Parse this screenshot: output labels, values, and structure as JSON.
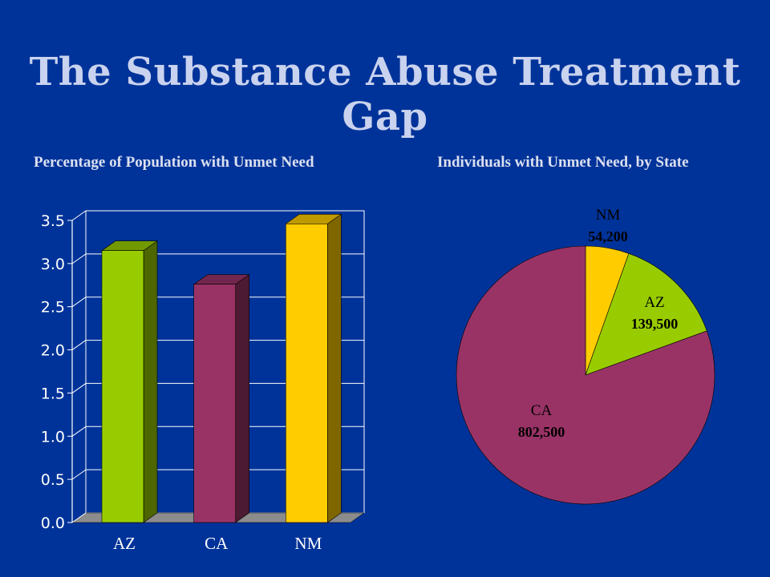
{
  "slide": {
    "title": "The Substance Abuse Treatment Gap"
  },
  "colors": {
    "background": "#003399",
    "title": "#c9d2ee",
    "AZ": "#99cc00",
    "CA": "#993366",
    "NM": "#ffcc00"
  },
  "chart_data": [
    {
      "type": "bar",
      "title": "Percentage of Population with Unmet Need",
      "categories": [
        "AZ",
        "CA",
        "NM"
      ],
      "values": [
        3.15,
        2.76,
        3.46
      ],
      "ylim": [
        0,
        3.5
      ],
      "yticks": [
        "0.0",
        "0.5",
        "1.0",
        "1.5",
        "2.0",
        "2.5",
        "3.0",
        "3.5"
      ],
      "ytick_values": [
        0,
        0.5,
        1.0,
        1.5,
        2.0,
        2.5,
        3.0,
        3.5
      ],
      "xlabel": "",
      "ylabel": "",
      "grid": true,
      "style": "3d"
    },
    {
      "type": "pie",
      "title": "Individuals with Unmet Need, by State",
      "slices": [
        {
          "label": "NM",
          "value": 54200,
          "value_label": "54,200"
        },
        {
          "label": "AZ",
          "value": 139500,
          "value_label": "139,500"
        },
        {
          "label": "CA",
          "value": 802500,
          "value_label": "802,500"
        }
      ]
    }
  ]
}
